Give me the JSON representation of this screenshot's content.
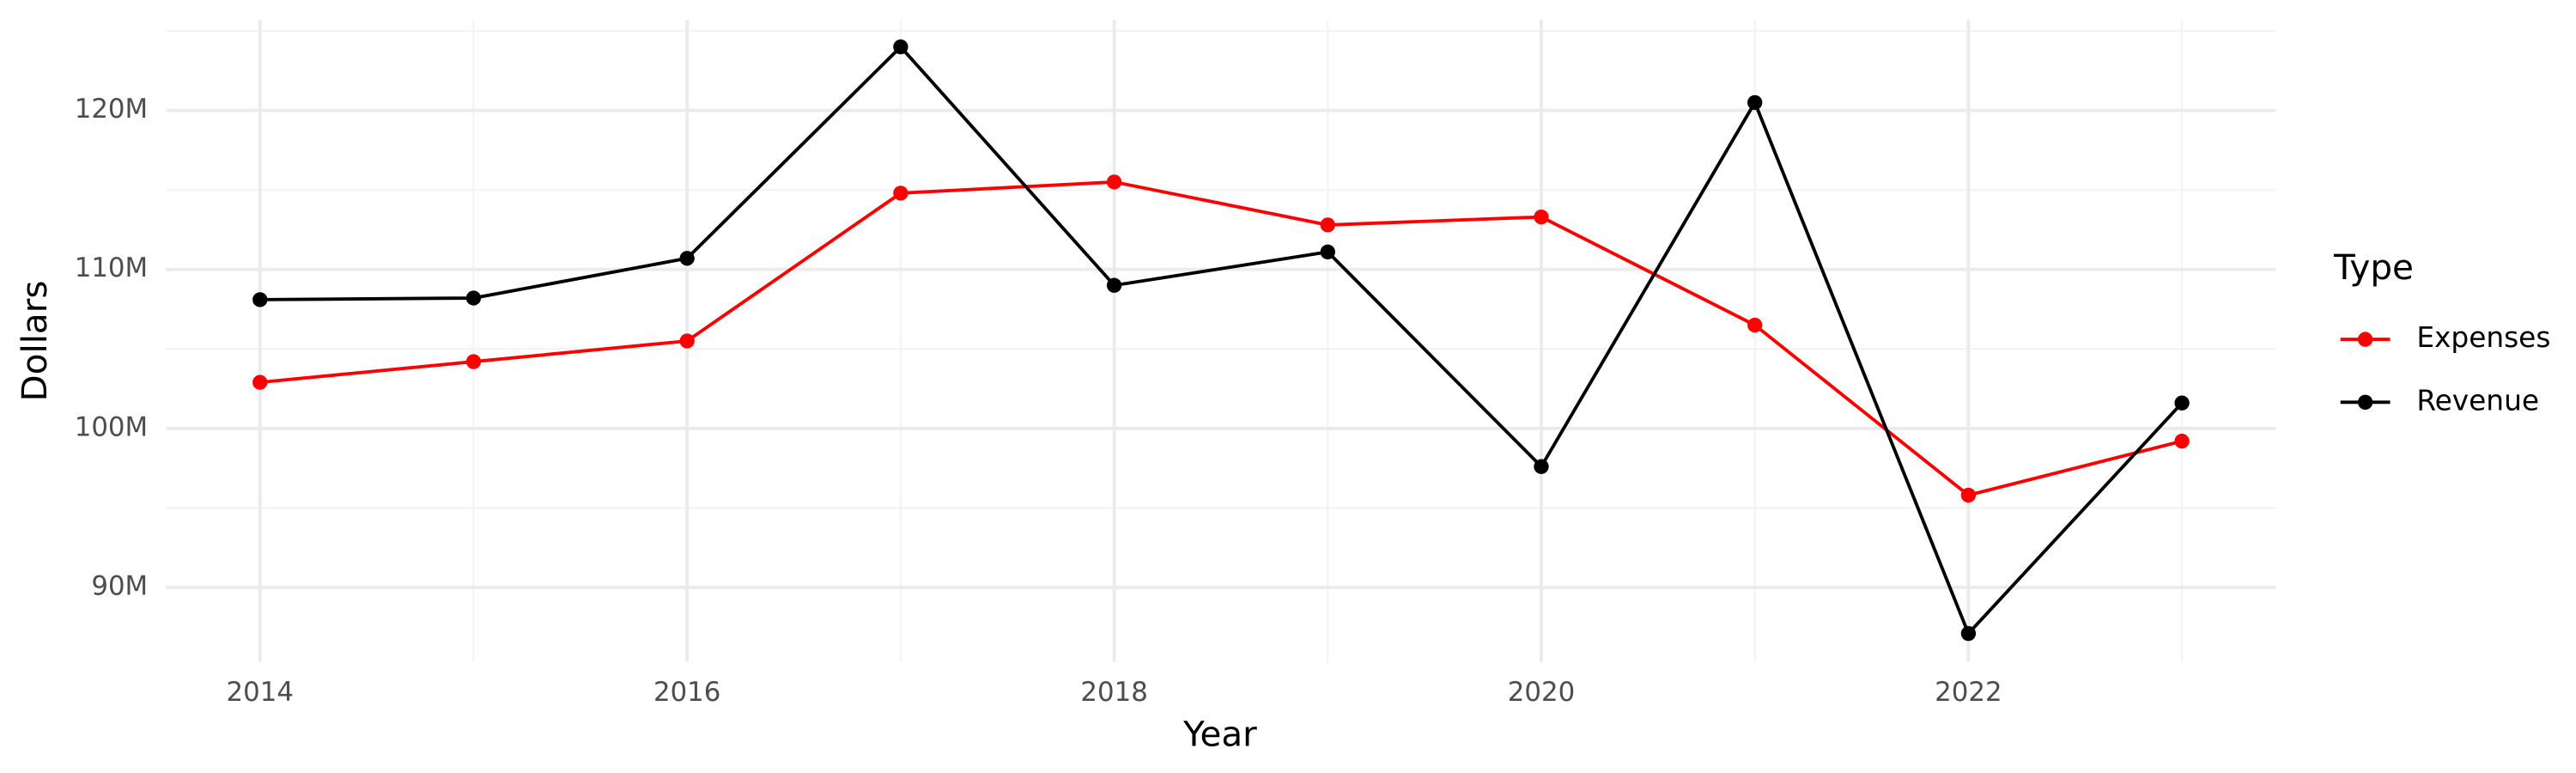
{
  "chart_data": {
    "type": "line",
    "x_label": "Year",
    "y_label": "Dollars",
    "legend_title": "Type",
    "x": [
      2014,
      2015,
      2016,
      2017,
      2018,
      2019,
      2020,
      2021,
      2022,
      2023
    ],
    "series": [
      {
        "name": "Expenses",
        "color": "#ff0000",
        "values": [
          102900000,
          104200000,
          105500000,
          114800000,
          115500000,
          112800000,
          113300000,
          106500000,
          95800000,
          99200000
        ]
      },
      {
        "name": "Revenue",
        "color": "#000000",
        "values": [
          108100000,
          108200000,
          110700000,
          124000000,
          109000000,
          111100000,
          97600000,
          120500000,
          87100000,
          101600000
        ]
      }
    ],
    "xlim": [
      2013.56,
      2023.44
    ],
    "xticks": [
      2014,
      2016,
      2018,
      2020,
      2022
    ],
    "ylim": [
      85300000,
      125700000
    ],
    "yticks": [
      {
        "value": 90000000,
        "label": "90M"
      },
      {
        "value": 100000000,
        "label": "100M"
      },
      {
        "value": 110000000,
        "label": "110M"
      },
      {
        "value": 120000000,
        "label": "120M"
      }
    ],
    "grid": true,
    "legend": "right"
  }
}
